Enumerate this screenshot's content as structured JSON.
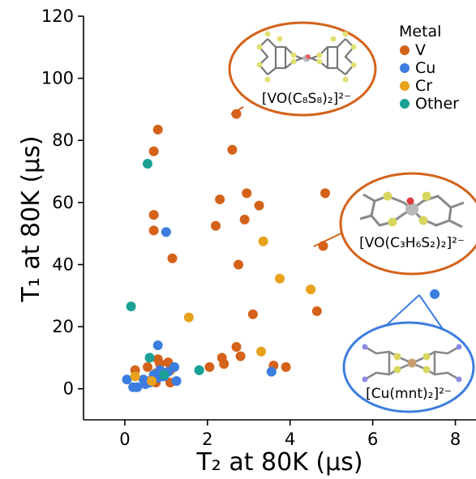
{
  "chart_data": {
    "type": "scatter",
    "xlabel": "T₂ at 80K (μs)",
    "ylabel": "T₁ at 80K (μs)",
    "xlim": [
      -1,
      8.5
    ],
    "ylim": [
      -10,
      120
    ],
    "xticks": [
      0,
      2,
      4,
      6,
      8
    ],
    "yticks": [
      0,
      20,
      40,
      60,
      80,
      100,
      120
    ],
    "grid": false,
    "legend": {
      "title": "Metal",
      "position": "top-right",
      "entries": [
        {
          "label": "V",
          "color": "#d4621a"
        },
        {
          "label": "Cu",
          "color": "#3c7de0"
        },
        {
          "label": "Cr",
          "color": "#e8a21b"
        },
        {
          "label": "Other",
          "color": "#1aa195"
        }
      ]
    },
    "series": [
      {
        "name": "V",
        "color": "#d4621a",
        "points": [
          [
            0.8,
            83.5
          ],
          [
            0.7,
            76.5
          ],
          [
            0.7,
            56
          ],
          [
            0.7,
            51
          ],
          [
            1.15,
            42
          ],
          [
            2.6,
            77
          ],
          [
            2.7,
            88.5
          ],
          [
            2.3,
            61
          ],
          [
            2.95,
            63
          ],
          [
            2.2,
            52.5
          ],
          [
            2.9,
            54.5
          ],
          [
            3.25,
            59
          ],
          [
            2.75,
            40
          ],
          [
            3.1,
            24
          ],
          [
            4.85,
            63
          ],
          [
            4.8,
            46
          ],
          [
            4.65,
            25
          ],
          [
            2.7,
            13.5
          ],
          [
            2.8,
            10.5
          ],
          [
            2.35,
            10
          ],
          [
            2.4,
            8
          ],
          [
            2.05,
            7
          ],
          [
            3.6,
            7.5
          ],
          [
            3.9,
            7
          ],
          [
            0.25,
            6
          ],
          [
            0.55,
            7
          ],
          [
            0.8,
            9.5
          ],
          [
            0.85,
            8
          ],
          [
            1.05,
            8.5
          ],
          [
            0.75,
            5
          ],
          [
            1.1,
            2
          ],
          [
            0.6,
            2.5
          ],
          [
            0.75,
            2
          ],
          [
            0.9,
            4
          ],
          [
            1.1,
            6
          ]
        ]
      },
      {
        "name": "Cu",
        "color": "#3c7de0",
        "points": [
          [
            1.0,
            50.5
          ],
          [
            0.8,
            14
          ],
          [
            7.5,
            30.5
          ],
          [
            3.55,
            5.5
          ],
          [
            1.8,
            6
          ],
          [
            0.05,
            3
          ],
          [
            0.2,
            0.5
          ],
          [
            0.3,
            0.5
          ],
          [
            0.45,
            3
          ],
          [
            0.5,
            1.5
          ],
          [
            0.6,
            2
          ],
          [
            0.8,
            3.5
          ],
          [
            0.95,
            4
          ],
          [
            1.2,
            7
          ],
          [
            0.85,
            6
          ],
          [
            1.05,
            5.5
          ],
          [
            1.25,
            2.5
          ],
          [
            0.7,
            4.5
          ]
        ]
      },
      {
        "name": "Cr",
        "color": "#e8a21b",
        "points": [
          [
            3.35,
            47.5
          ],
          [
            3.75,
            35.5
          ],
          [
            4.5,
            32
          ],
          [
            1.55,
            23
          ],
          [
            3.3,
            12
          ],
          [
            0.25,
            4
          ],
          [
            0.65,
            2.5
          ]
        ]
      },
      {
        "name": "Other",
        "color": "#1aa195",
        "points": [
          [
            0.55,
            72.5
          ],
          [
            0.15,
            26.5
          ],
          [
            0.6,
            10
          ],
          [
            1.8,
            6
          ],
          [
            0.95,
            4.5
          ]
        ]
      }
    ],
    "callouts": [
      {
        "label": "[VO(C₈S₈)₂]²⁻",
        "color": "#d4621a",
        "point": [
          2.7,
          88.5
        ]
      },
      {
        "label": "[VO(C₃H₆S₂)₂]²⁻",
        "color": "#d4621a",
        "point": [
          4.8,
          46
        ]
      },
      {
        "label": "[Cu(mnt)₂]²⁻",
        "color": "#3c7de0",
        "point": [
          7.5,
          30.5
        ]
      }
    ]
  }
}
